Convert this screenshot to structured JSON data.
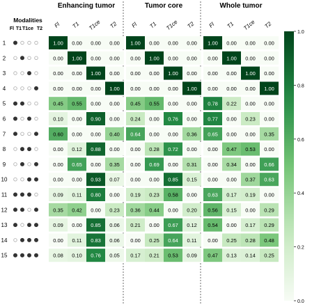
{
  "chart_data": {
    "type": "heatmap",
    "modalities_header": "Modalities",
    "modality_abbrevs": [
      "Fl",
      "T1",
      "T1ce",
      "T2"
    ],
    "column_labels": [
      "Fl",
      "T1",
      "T1ce",
      "T2"
    ],
    "groups": [
      {
        "name": "Enhancing tumor",
        "rows": [
          [
            1.0,
            0.0,
            0.0,
            0.0
          ],
          [
            0.0,
            1.0,
            0.0,
            0.0
          ],
          [
            0.0,
            0.0,
            1.0,
            0.0
          ],
          [
            0.0,
            0.0,
            0.0,
            1.0
          ],
          [
            0.45,
            0.55,
            0.0,
            0.0
          ],
          [
            0.1,
            0.0,
            0.9,
            0.0
          ],
          [
            0.6,
            0.0,
            0.0,
            0.4
          ],
          [
            0.0,
            0.12,
            0.88,
            0.0
          ],
          [
            0.0,
            0.65,
            0.0,
            0.35
          ],
          [
            0.0,
            0.0,
            0.93,
            0.07
          ],
          [
            0.09,
            0.11,
            0.8,
            0.0
          ],
          [
            0.35,
            0.42,
            0.0,
            0.23
          ],
          [
            0.09,
            0.0,
            0.85,
            0.06
          ],
          [
            0.0,
            0.11,
            0.83,
            0.06
          ],
          [
            0.08,
            0.1,
            0.76,
            0.05
          ]
        ]
      },
      {
        "name": "Tumor core",
        "rows": [
          [
            1.0,
            0.0,
            0.0,
            0.0
          ],
          [
            0.0,
            1.0,
            0.0,
            0.0
          ],
          [
            0.0,
            0.0,
            1.0,
            0.0
          ],
          [
            0.0,
            0.0,
            0.0,
            1.0
          ],
          [
            0.45,
            0.55,
            0.0,
            0.0
          ],
          [
            0.24,
            0.0,
            0.76,
            0.0
          ],
          [
            0.64,
            0.0,
            0.0,
            0.36
          ],
          [
            0.0,
            0.28,
            0.72,
            0.0
          ],
          [
            0.0,
            0.69,
            0.0,
            0.31
          ],
          [
            0.0,
            0.0,
            0.85,
            0.15
          ],
          [
            0.19,
            0.23,
            0.58,
            0.0
          ],
          [
            0.36,
            0.44,
            0.0,
            0.2
          ],
          [
            0.21,
            0.0,
            0.67,
            0.12
          ],
          [
            0.0,
            0.25,
            0.64,
            0.11
          ],
          [
            0.17,
            0.21,
            0.53,
            0.09
          ]
        ]
      },
      {
        "name": "Whole tumor",
        "rows": [
          [
            1.0,
            0.0,
            0.0,
            0.0
          ],
          [
            0.0,
            1.0,
            0.0,
            0.0
          ],
          [
            0.0,
            0.0,
            1.0,
            0.0
          ],
          [
            0.0,
            0.0,
            0.0,
            1.0
          ],
          [
            0.78,
            0.22,
            0.0,
            0.0
          ],
          [
            0.77,
            0.0,
            0.23,
            0.0
          ],
          [
            0.65,
            0.0,
            0.0,
            0.35
          ],
          [
            0.0,
            0.47,
            0.53,
            0.0
          ],
          [
            0.0,
            0.34,
            0.0,
            0.66
          ],
          [
            0.0,
            0.0,
            0.37,
            0.63
          ],
          [
            0.63,
            0.17,
            0.19,
            0.0
          ],
          [
            0.56,
            0.15,
            0.0,
            0.29
          ],
          [
            0.54,
            0.0,
            0.17,
            0.29
          ],
          [
            0.0,
            0.25,
            0.28,
            0.48
          ],
          [
            0.47,
            0.13,
            0.14,
            0.25
          ]
        ]
      }
    ],
    "modality_patterns": [
      [
        1,
        0,
        0,
        0
      ],
      [
        0,
        1,
        0,
        0
      ],
      [
        0,
        0,
        1,
        0
      ],
      [
        0,
        0,
        0,
        1
      ],
      [
        1,
        1,
        0,
        0
      ],
      [
        1,
        0,
        1,
        0
      ],
      [
        1,
        0,
        0,
        1
      ],
      [
        0,
        1,
        1,
        0
      ],
      [
        0,
        1,
        0,
        1
      ],
      [
        0,
        0,
        1,
        1
      ],
      [
        1,
        1,
        1,
        0
      ],
      [
        1,
        1,
        0,
        1
      ],
      [
        1,
        0,
        1,
        1
      ],
      [
        0,
        1,
        1,
        1
      ],
      [
        1,
        1,
        1,
        1
      ]
    ],
    "row_labels": [
      "1",
      "2",
      "3",
      "4",
      "5",
      "6",
      "7",
      "8",
      "9",
      "10",
      "11",
      "12",
      "13",
      "14",
      "15"
    ],
    "colorbar": {
      "min": 0.0,
      "max": 1.0,
      "ticks": [
        "0.0",
        "0.2",
        "0.4",
        "0.6",
        "0.8",
        "1.0"
      ]
    },
    "colors": {
      "high": "#00441b",
      "mid": "#41ab5d",
      "low": "#f7fcf5",
      "dot_on": "#333333",
      "dot_off": "#aaaaaa"
    }
  }
}
